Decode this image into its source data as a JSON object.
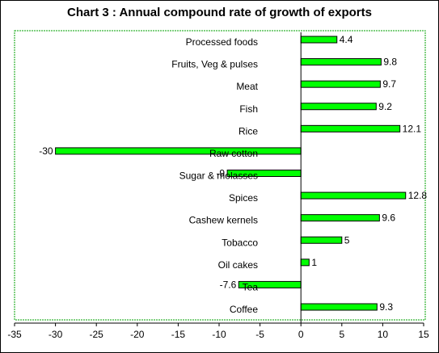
{
  "chart_data": {
    "type": "bar",
    "orientation": "horizontal",
    "title": "Chart 3 : Annual compound rate of growth of exports",
    "xlabel": "",
    "ylabel": "",
    "xlim": [
      -35,
      15
    ],
    "xticks": [
      -35,
      -30,
      -25,
      -20,
      -15,
      -10,
      -5,
      0,
      5,
      10,
      15
    ],
    "categories": [
      "Processed foods",
      "Fruits, Veg & pulses",
      "Meat",
      "Fish",
      "Rice",
      "Raw cotton",
      "Sugar & molasses",
      "Spices",
      "Cashew kernels",
      "Tobacco",
      "Oil cakes",
      "Tea",
      "Coffee"
    ],
    "values": [
      4.4,
      9.8,
      9.7,
      9.2,
      12.1,
      -30,
      -9,
      12.8,
      9.6,
      5,
      1,
      -7.6,
      9.3
    ],
    "value_labels": [
      "4.4",
      "9.8",
      "9.7",
      "9.2",
      "12.1",
      "-30",
      "-9",
      "12.8",
      "9.6",
      "5",
      "1",
      "-7.6",
      "9.3"
    ],
    "bar_color": "#00ff00",
    "plot_border_color": "#00a000",
    "grid": false,
    "legend": "none"
  }
}
